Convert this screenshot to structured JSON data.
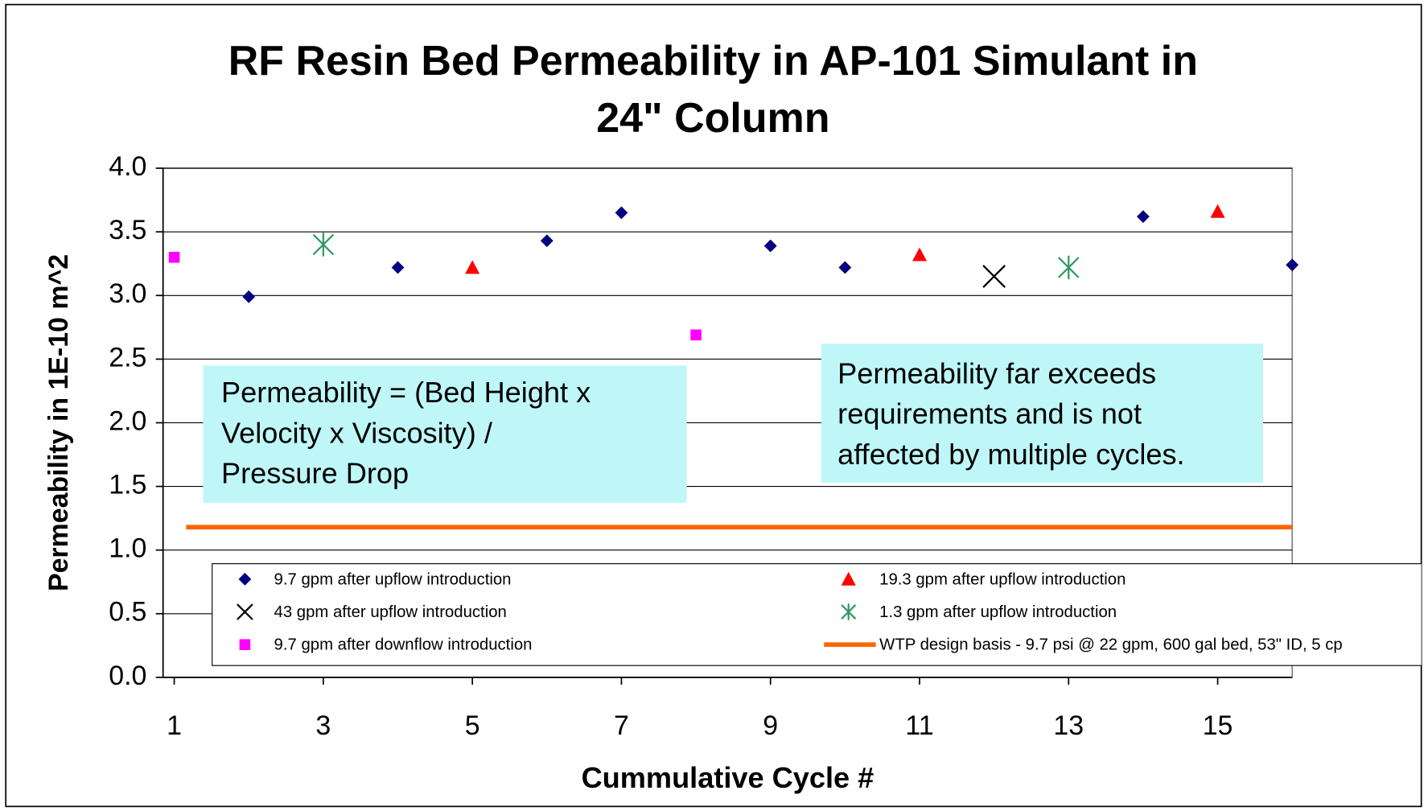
{
  "chart_data": {
    "type": "scatter",
    "title": [
      "RF Resin Bed Permeability in AP-101 Simulant in",
      "24\" Column"
    ],
    "x_label": "Cummulative Cycle #",
    "y_label": "Permeability in 1E-10 m^2",
    "xlim": [
      0.85,
      16
    ],
    "xticks": [
      1,
      3,
      5,
      7,
      9,
      11,
      13,
      15
    ],
    "ylim": [
      0,
      4
    ],
    "yticks": [
      {
        "value": 0,
        "label": "0.0"
      },
      0.5,
      {
        "value": 1,
        "label": "1.0"
      },
      1.5,
      {
        "value": 2,
        "label": "2.0"
      },
      2.5,
      {
        "value": 3,
        "label": "3.0"
      },
      3.5,
      {
        "value": 4,
        "label": "4.0"
      }
    ],
    "grid": true,
    "series": [
      {
        "name": "9.7 gpm after upflow introduction",
        "color": "#000080",
        "marker": "diamond",
        "x": [
          2,
          4,
          6,
          7,
          9,
          10,
          14,
          16
        ],
        "values": [
          2.99,
          3.22,
          3.43,
          3.65,
          3.39,
          3.22,
          3.62,
          3.24
        ]
      },
      {
        "name": "19.3 gpm after upflow introduction",
        "color": "#ff0000",
        "marker": "triangle",
        "x": [
          5,
          11,
          15
        ],
        "values": [
          3.22,
          3.32,
          3.66
        ]
      },
      {
        "name": "43 gpm after upflow introduction",
        "color": "#000000",
        "marker": "x",
        "x": [
          12
        ],
        "values": [
          3.15
        ]
      },
      {
        "name": "1.3 gpm after upflow introduction",
        "color": "#339966",
        "marker": "asterisk",
        "x": [
          3,
          13
        ],
        "values": [
          3.4,
          3.22
        ]
      },
      {
        "name": "9.7 gpm after downflow introduction",
        "color": "#ff00ff",
        "marker": "square",
        "x": [
          1,
          8
        ],
        "values": [
          3.3,
          2.69
        ]
      },
      {
        "name": "WTP design basis - 9.7 psi @ 22 gpm, 600 gal bed, 53\" ID, 5 cp",
        "color": "#ff6600",
        "marker": "line",
        "x": [
          1.16,
          16
        ],
        "values": [
          1.18,
          1.18
        ]
      }
    ],
    "annotations": [
      [
        "Permeability = (Bed Height x",
        "Velocity x Viscosity) /",
        "Pressure Drop"
      ],
      [
        "Permeability far exceeds",
        "requirements and is not",
        "affected by multiple cycles."
      ]
    ]
  }
}
